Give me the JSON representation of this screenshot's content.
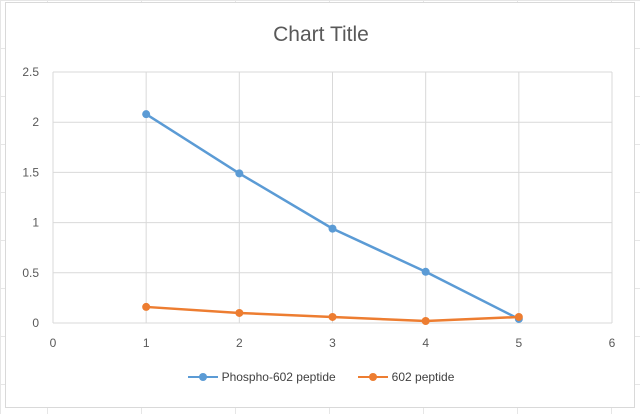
{
  "chart_data": {
    "type": "line",
    "title": "Chart Title",
    "x_ticks": [
      "0",
      "1",
      "2",
      "3",
      "4",
      "5",
      "6"
    ],
    "y_ticks": [
      "0",
      "0.5",
      "1",
      "1.5",
      "2",
      "2.5"
    ],
    "xlim": [
      0,
      6
    ],
    "ylim": [
      0,
      2.5
    ],
    "grid": true,
    "legend_position": "bottom",
    "series": [
      {
        "name": "Phospho-602 peptide",
        "color": "#5B9BD5",
        "x": [
          1,
          2,
          3,
          4,
          5
        ],
        "y": [
          2.08,
          1.49,
          0.94,
          0.51,
          0.04
        ]
      },
      {
        "name": "602 peptide",
        "color": "#ED7D31",
        "x": [
          1,
          2,
          3,
          4,
          5
        ],
        "y": [
          0.16,
          0.1,
          0.06,
          0.02,
          0.06
        ]
      }
    ]
  }
}
